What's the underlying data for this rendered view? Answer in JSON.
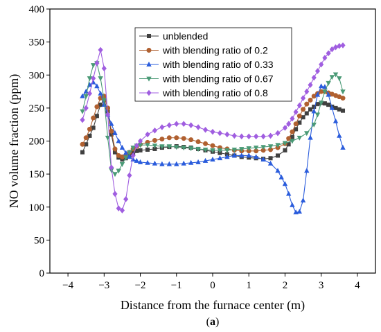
{
  "caption": {
    "prefix": "(",
    "letter": "a",
    "suffix": ")"
  },
  "chart_data": {
    "type": "line",
    "xlabel": "Distance from the furnace center (m)",
    "ylabel": "NO volume fraction (ppm)",
    "xlim": [
      -4.5,
      4.5
    ],
    "ylim": [
      0,
      400
    ],
    "xticks": [
      -4,
      -3,
      -2,
      -1,
      0,
      1,
      2,
      3,
      4
    ],
    "xtick_labels": [
      "−4",
      "−3",
      "−2",
      "−1",
      "0",
      "1",
      "2",
      "3",
      "4"
    ],
    "yticks": [
      0,
      50,
      100,
      150,
      200,
      250,
      300,
      350,
      400
    ],
    "grid": false,
    "legend_position": "top-center",
    "series": [
      {
        "name": "unblended",
        "color": "#404040",
        "marker": "square",
        "x": [
          -3.6,
          -3.5,
          -3.4,
          -3.3,
          -3.2,
          -3.1,
          -3.0,
          -2.9,
          -2.8,
          -2.7,
          -2.6,
          -2.5,
          -2.4,
          -2.3,
          -2.2,
          -2.1,
          -2.0,
          -1.8,
          -1.6,
          -1.4,
          -1.2,
          -1.0,
          -0.8,
          -0.6,
          -0.4,
          -0.2,
          0.0,
          0.2,
          0.4,
          0.6,
          0.8,
          1.0,
          1.2,
          1.4,
          1.6,
          1.8,
          2.0,
          2.1,
          2.2,
          2.3,
          2.4,
          2.5,
          2.6,
          2.7,
          2.8,
          2.9,
          3.0,
          3.1,
          3.2,
          3.3,
          3.4,
          3.5,
          3.6
        ],
        "y": [
          183,
          195,
          208,
          220,
          238,
          255,
          262,
          245,
          210,
          183,
          175,
          172,
          174,
          178,
          182,
          185,
          186,
          187,
          188,
          190,
          191,
          192,
          191,
          190,
          188,
          186,
          184,
          182,
          180,
          178,
          176,
          175,
          174,
          173,
          174,
          178,
          186,
          195,
          206,
          218,
          228,
          236,
          242,
          248,
          252,
          256,
          258,
          257,
          255,
          252,
          250,
          248,
          246
        ]
      },
      {
        "name": "with blending ratio of 0.2",
        "color": "#b06030",
        "marker": "circle",
        "x": [
          -3.6,
          -3.5,
          -3.4,
          -3.3,
          -3.2,
          -3.1,
          -3.0,
          -2.9,
          -2.8,
          -2.7,
          -2.6,
          -2.5,
          -2.4,
          -2.3,
          -2.2,
          -2.1,
          -2.0,
          -1.8,
          -1.6,
          -1.4,
          -1.2,
          -1.0,
          -0.8,
          -0.6,
          -0.4,
          -0.2,
          0.0,
          0.2,
          0.4,
          0.6,
          0.8,
          1.0,
          1.2,
          1.4,
          1.6,
          1.8,
          2.0,
          2.1,
          2.2,
          2.3,
          2.4,
          2.5,
          2.6,
          2.7,
          2.8,
          2.9,
          3.0,
          3.1,
          3.2,
          3.3,
          3.4,
          3.5,
          3.6
        ],
        "y": [
          195,
          205,
          218,
          235,
          252,
          265,
          268,
          250,
          215,
          188,
          178,
          176,
          178,
          183,
          188,
          192,
          195,
          198,
          201,
          203,
          205,
          205,
          204,
          202,
          199,
          196,
          193,
          190,
          188,
          186,
          185,
          185,
          185,
          186,
          187,
          190,
          196,
          204,
          214,
          226,
          238,
          248,
          256,
          262,
          268,
          272,
          275,
          275,
          273,
          271,
          269,
          267,
          265
        ]
      },
      {
        "name": "with blending ratio of 0.33",
        "color": "#2a5cdc",
        "marker": "triangle-up",
        "x": [
          -3.6,
          -3.5,
          -3.4,
          -3.3,
          -3.2,
          -3.1,
          -3.0,
          -2.9,
          -2.8,
          -2.7,
          -2.6,
          -2.5,
          -2.4,
          -2.3,
          -2.2,
          -2.1,
          -2.0,
          -1.8,
          -1.6,
          -1.4,
          -1.2,
          -1.0,
          -0.8,
          -0.6,
          -0.4,
          -0.2,
          0.0,
          0.2,
          0.4,
          0.6,
          0.8,
          1.0,
          1.2,
          1.4,
          1.6,
          1.8,
          1.9,
          2.0,
          2.1,
          2.2,
          2.3,
          2.4,
          2.5,
          2.6,
          2.7,
          2.8,
          2.9,
          3.0,
          3.1,
          3.2,
          3.3,
          3.4,
          3.5,
          3.6
        ],
        "y": [
          268,
          275,
          285,
          289,
          283,
          272,
          255,
          240,
          226,
          212,
          200,
          190,
          182,
          176,
          172,
          170,
          168,
          167,
          166,
          165,
          165,
          165,
          166,
          167,
          168,
          170,
          172,
          174,
          176,
          178,
          178,
          178,
          176,
          172,
          166,
          155,
          145,
          135,
          120,
          103,
          92,
          93,
          110,
          155,
          205,
          245,
          270,
          283,
          282,
          270,
          250,
          230,
          208,
          190
        ]
      },
      {
        "name": "with blending ratio of 0.67",
        "color": "#4a9a76",
        "marker": "triangle-down",
        "x": [
          -3.6,
          -3.5,
          -3.4,
          -3.3,
          -3.2,
          -3.1,
          -3.0,
          -2.9,
          -2.8,
          -2.7,
          -2.6,
          -2.5,
          -2.4,
          -2.3,
          -2.2,
          -2.1,
          -2.0,
          -1.8,
          -1.6,
          -1.4,
          -1.2,
          -1.0,
          -0.8,
          -0.6,
          -0.4,
          -0.2,
          0.0,
          0.2,
          0.4,
          0.6,
          0.8,
          1.0,
          1.2,
          1.4,
          1.6,
          1.8,
          2.0,
          2.2,
          2.4,
          2.6,
          2.8,
          2.9,
          3.0,
          3.1,
          3.2,
          3.3,
          3.4,
          3.5,
          3.6
        ],
        "y": [
          245,
          268,
          295,
          315,
          318,
          295,
          262,
          205,
          156,
          150,
          155,
          165,
          175,
          183,
          190,
          193,
          194,
          194,
          193,
          192,
          192,
          191,
          190,
          189,
          188,
          187,
          186,
          186,
          186,
          187,
          188,
          189,
          190,
          191,
          192,
          194,
          197,
          200,
          205,
          212,
          225,
          240,
          258,
          275,
          288,
          297,
          301,
          295,
          275
        ]
      },
      {
        "name": "with blending ratio of 0.8",
        "color": "#a05ee0",
        "marker": "diamond",
        "x": [
          -3.6,
          -3.5,
          -3.4,
          -3.3,
          -3.2,
          -3.1,
          -3.0,
          -2.9,
          -2.8,
          -2.7,
          -2.6,
          -2.5,
          -2.4,
          -2.3,
          -2.2,
          -2.1,
          -2.0,
          -1.8,
          -1.6,
          -1.4,
          -1.2,
          -1.0,
          -0.8,
          -0.6,
          -0.4,
          -0.2,
          0.0,
          0.2,
          0.4,
          0.6,
          0.8,
          1.0,
          1.2,
          1.4,
          1.6,
          1.8,
          2.0,
          2.1,
          2.2,
          2.3,
          2.4,
          2.5,
          2.6,
          2.7,
          2.8,
          2.9,
          3.0,
          3.1,
          3.2,
          3.3,
          3.4,
          3.5,
          3.6
        ],
        "y": [
          232,
          250,
          272,
          295,
          318,
          338,
          310,
          240,
          160,
          120,
          98,
          95,
          112,
          148,
          178,
          193,
          200,
          210,
          216,
          221,
          224,
          226,
          226,
          224,
          221,
          217,
          214,
          212,
          210,
          208,
          207,
          207,
          207,
          207,
          208,
          212,
          220,
          226,
          234,
          244,
          254,
          265,
          275,
          285,
          296,
          306,
          316,
          326,
          333,
          339,
          342,
          344,
          345
        ]
      }
    ]
  }
}
